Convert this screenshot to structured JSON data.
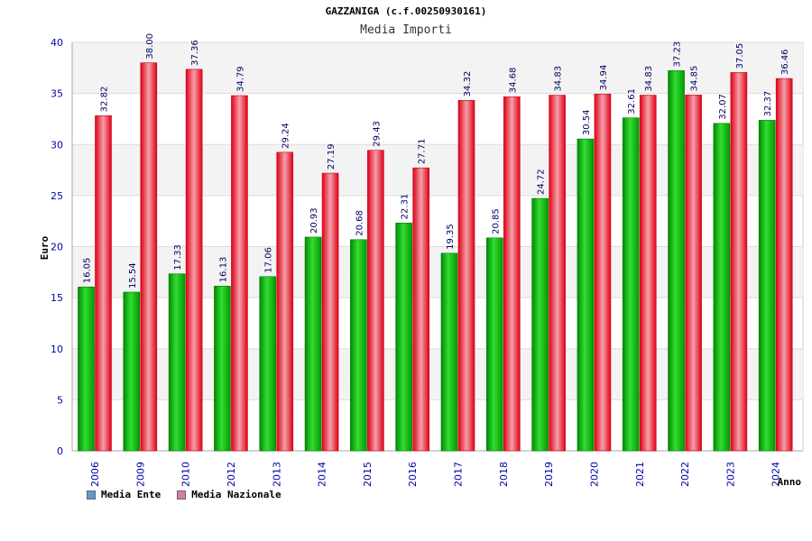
{
  "chart_data": {
    "type": "bar",
    "title": "GAZZANIGA (c.f.00250930161)",
    "subtitle": "Media Importi",
    "xlabel": "Anno",
    "ylabel": "Euro",
    "ylim": [
      0,
      40
    ],
    "yticks": [
      "0",
      "5",
      "10",
      "15",
      "20",
      "25",
      "30",
      "35",
      "40"
    ],
    "grid": true,
    "legend_position": "bottom-left",
    "categories": [
      "2006",
      "2009",
      "2010",
      "2012",
      "2013",
      "2014",
      "2015",
      "2016",
      "2017",
      "2018",
      "2019",
      "2020",
      "2021",
      "2022",
      "2023",
      "2024"
    ],
    "series": [
      {
        "name": "Media Ente",
        "color": "#00b000",
        "legend_color": "#5b9bd5",
        "values": [
          16.05,
          15.54,
          17.33,
          16.13,
          17.06,
          20.93,
          20.68,
          22.31,
          19.35,
          20.85,
          24.72,
          30.54,
          32.61,
          37.23,
          32.07,
          32.37
        ]
      },
      {
        "name": "Media Nazionale",
        "color": "#e8001c",
        "legend_color": "#d97aa7",
        "values": [
          32.82,
          38.0,
          37.36,
          34.79,
          29.24,
          27.19,
          29.43,
          27.71,
          34.32,
          34.68,
          34.83,
          34.94,
          34.83,
          34.85,
          37.05,
          36.46
        ]
      }
    ],
    "value_labels": [
      [
        "16.05",
        "15.54",
        "17.33",
        "16.13",
        "17.06",
        "20.93",
        "20.68",
        "22.31",
        "19.35",
        "20.85",
        "24.72",
        "30.54",
        "32.61",
        "37.23",
        "32.07",
        "32.37"
      ],
      [
        "32.82",
        "38.00",
        "37.36",
        "34.79",
        "29.24",
        "27.19",
        "29.43",
        "27.71",
        "34.32",
        "34.68",
        "34.83",
        "34.94",
        "34.83",
        "34.85",
        "37.05",
        "36.46"
      ]
    ]
  }
}
